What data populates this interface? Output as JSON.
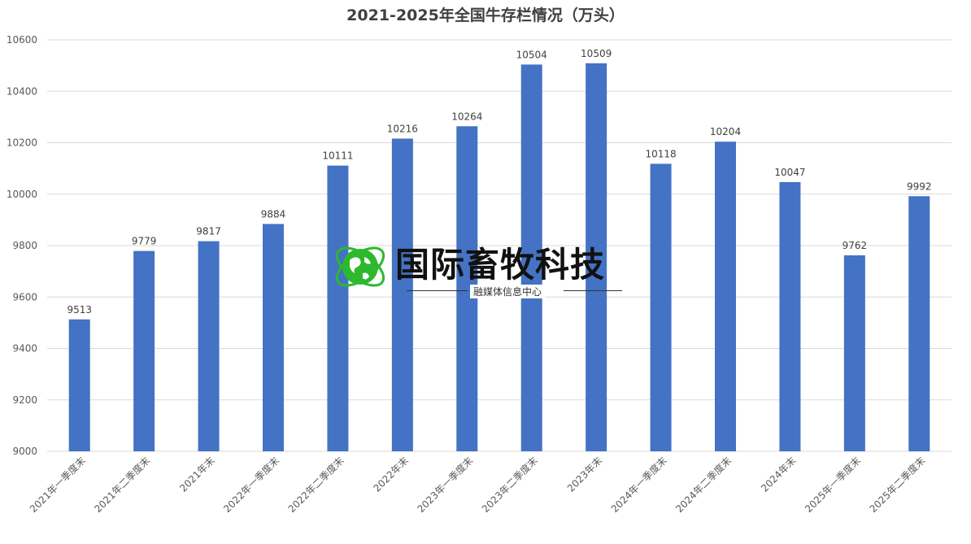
{
  "chart_data": {
    "type": "bar",
    "title": "2021-2025年全国牛存栏情况（万头）",
    "categories": [
      "2021年一季度末",
      "2021年二季度末",
      "2021年末",
      "2022年一季度末",
      "2022年二季度末",
      "2022年末",
      "2023年一季度末",
      "2023年二季度末",
      "2023年末",
      "2024年一季度末",
      "2024年二季度末",
      "2024年末",
      "2025年一季度末",
      "2025年二季度末"
    ],
    "values": [
      9513,
      9779,
      9817,
      9884,
      10111,
      10216,
      10264,
      10504,
      10509,
      10118,
      10204,
      10047,
      9762,
      9992
    ],
    "ylim": [
      9000,
      10600
    ],
    "yticks": [
      9000,
      9200,
      9400,
      9600,
      9800,
      10000,
      10200,
      10400,
      10600
    ],
    "grid": true,
    "bar_color": "#4472C4",
    "data_labels": true
  },
  "watermark": {
    "title": "国际畜牧科技",
    "subtitle": "融媒体信息中心",
    "icon": "globe-icon",
    "icon_color": "#2DB82D"
  }
}
